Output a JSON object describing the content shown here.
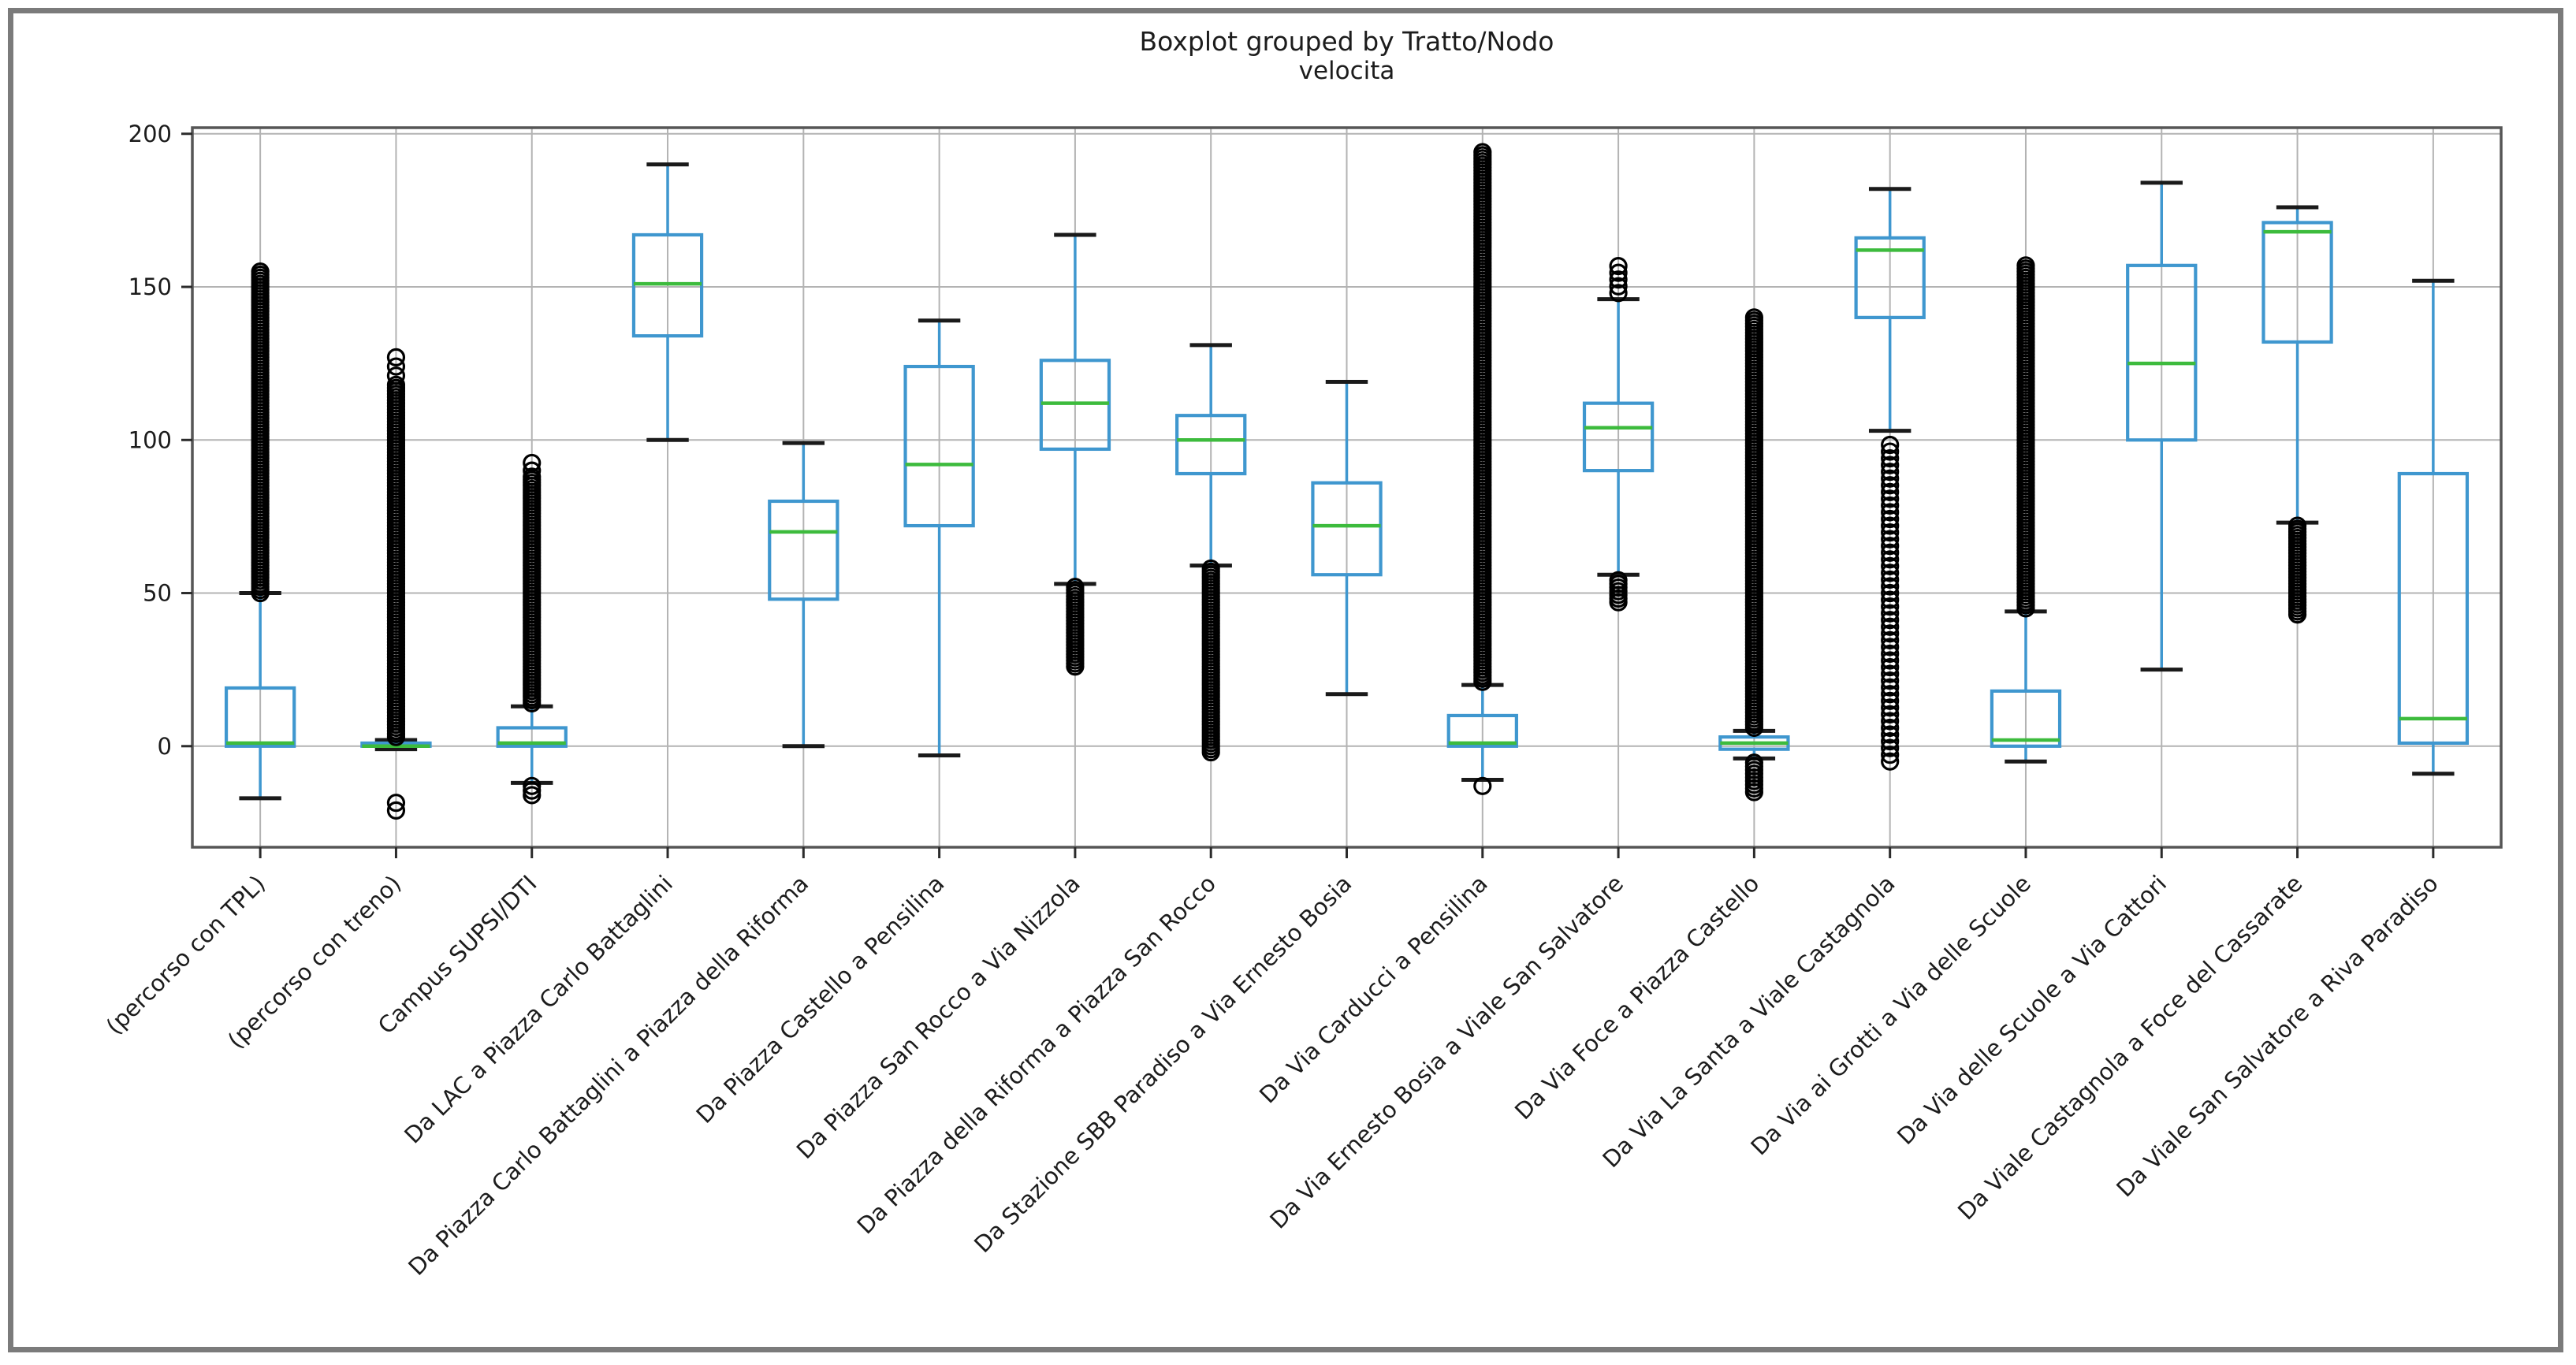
{
  "figure": {
    "border_color": "#7b7b7b",
    "background": "#ffffff"
  },
  "chart_data": {
    "type": "boxplot",
    "title": "Boxplot grouped by Tratto/Nodo",
    "subtitle": "velocita",
    "group_by_label": "Tratto/Nodo",
    "value_label": "velocita",
    "xlabel": "",
    "ylabel": "",
    "ylim": [
      -33,
      202
    ],
    "yticks": [
      0,
      50,
      100,
      150,
      200
    ],
    "grid": true,
    "legend": "none",
    "colors": {
      "box": "#3f97cf",
      "whisker": "#3f97cf",
      "cap": "#1a1a1a",
      "median": "#3dbb3d",
      "flier": "#000000",
      "grid": "#b3b3b3",
      "spine": "#565656",
      "tick": "#2b2b2b"
    },
    "boxes": [
      {
        "label": "(percorso con TPL)",
        "whislo": -17,
        "q1": 0,
        "med": 1,
        "q3": 19,
        "whishi": 50,
        "fliers_high": [
          {
            "min": 50,
            "max": 155,
            "step": 1
          }
        ],
        "fliers_low": []
      },
      {
        "label": "(percorso con treno)",
        "whislo": -1,
        "q1": 0,
        "med": 0,
        "q3": 1,
        "whishi": 2,
        "fliers_high": [
          {
            "min": 3,
            "max": 118,
            "step": 1
          },
          {
            "min": 121,
            "max": 127,
            "step": 3
          }
        ],
        "fliers_low": [
          {
            "min": -21,
            "max": -17,
            "step": 2.5
          }
        ]
      },
      {
        "label": "Campus SUPSI/DTI",
        "whislo": -12,
        "q1": 0,
        "med": 1,
        "q3": 6,
        "whishi": 13,
        "fliers_high": [
          {
            "min": 14,
            "max": 88,
            "step": 1
          },
          {
            "min": 90,
            "max": 93,
            "step": 2.5
          }
        ],
        "fliers_low": [
          {
            "min": -16,
            "max": -13,
            "step": 1.5
          }
        ]
      },
      {
        "label": "Da LAC a Piazza Carlo Battaglini",
        "whislo": 100,
        "q1": 134,
        "med": 151,
        "q3": 167,
        "whishi": 190,
        "fliers_high": [],
        "fliers_low": []
      },
      {
        "label": "Da Piazza Carlo Battaglini a Piazza della Riforma",
        "whislo": 0,
        "q1": 48,
        "med": 70,
        "q3": 80,
        "whishi": 99,
        "fliers_high": [],
        "fliers_low": []
      },
      {
        "label": "Da Piazza Castello a Pensilina",
        "whislo": -3,
        "q1": 72,
        "med": 92,
        "q3": 124,
        "whishi": 139,
        "fliers_high": [],
        "fliers_low": []
      },
      {
        "label": "Da Piazza San Rocco a Via Nizzola",
        "whislo": 53,
        "q1": 97,
        "med": 112,
        "q3": 126,
        "whishi": 167,
        "fliers_high": [],
        "fliers_low": [
          {
            "min": 26,
            "max": 52,
            "step": 1
          }
        ]
      },
      {
        "label": "Da Piazza della Riforma a Piazza San Rocco",
        "whislo": 59,
        "q1": 89,
        "med": 100,
        "q3": 108,
        "whishi": 131,
        "fliers_high": [],
        "fliers_low": [
          {
            "min": -2,
            "max": 58,
            "step": 1
          }
        ]
      },
      {
        "label": "Da Stazione SBB Paradiso a Via Ernesto Bosia",
        "whislo": 17,
        "q1": 56,
        "med": 72,
        "q3": 86,
        "whishi": 119,
        "fliers_high": [],
        "fliers_low": []
      },
      {
        "label": "Da Via Carducci a Pensilina",
        "whislo": -11,
        "q1": 0,
        "med": 1,
        "q3": 10,
        "whishi": 20,
        "fliers_high": [
          {
            "min": 21,
            "max": 194,
            "step": 1
          }
        ],
        "fliers_low": [
          {
            "min": -13,
            "max": -13,
            "step": 4
          }
        ]
      },
      {
        "label": "Da Via Ernesto Bosia a Viale San Salvatore",
        "whislo": 56,
        "q1": 90,
        "med": 104,
        "q3": 112,
        "whishi": 146,
        "fliers_high": [
          {
            "min": 148,
            "max": 158,
            "step": 2.2
          }
        ],
        "fliers_low": [
          {
            "min": 47,
            "max": 55,
            "step": 1.2
          }
        ]
      },
      {
        "label": "Da Via Foce a Piazza Castello",
        "whislo": -4,
        "q1": -1,
        "med": 1,
        "q3": 3,
        "whishi": 5,
        "fliers_high": [
          {
            "min": 6,
            "max": 140,
            "step": 1
          }
        ],
        "fliers_low": [
          {
            "min": -15,
            "max": -5,
            "step": 1.2
          }
        ]
      },
      {
        "label": "Da Via La Santa a Viale Castagnola",
        "whislo": 103,
        "q1": 140,
        "med": 162,
        "q3": 166,
        "whishi": 182,
        "fliers_high": [],
        "fliers_low": [
          {
            "min": -5,
            "max": 100,
            "step": 2.2
          }
        ]
      },
      {
        "label": "Da Via ai Grotti a Via delle Scuole",
        "whislo": -5,
        "q1": 0,
        "med": 2,
        "q3": 18,
        "whishi": 44,
        "fliers_high": [
          {
            "min": 45,
            "max": 157,
            "step": 1
          }
        ],
        "fliers_low": []
      },
      {
        "label": "Da Via delle Scuole a Via Cattori",
        "whislo": 25,
        "q1": 100,
        "med": 125,
        "q3": 157,
        "whishi": 184,
        "fliers_high": [],
        "fliers_low": []
      },
      {
        "label": "Da Viale Castagnola a Foce del Cassarate",
        "whislo": 73,
        "q1": 132,
        "med": 168,
        "q3": 171,
        "whishi": 176,
        "fliers_high": [],
        "fliers_low": [
          {
            "min": 43,
            "max": 72,
            "step": 1
          }
        ]
      },
      {
        "label": "Da Viale San Salvatore a Riva Paradiso",
        "whislo": -9,
        "q1": 1,
        "med": 9,
        "q3": 89,
        "whishi": 152,
        "fliers_high": [],
        "fliers_low": []
      }
    ],
    "layout": {
      "plot_left": 244,
      "plot_right": 3173,
      "plot_top": 162,
      "plot_bottom": 1075,
      "tick_len": 14
    }
  }
}
